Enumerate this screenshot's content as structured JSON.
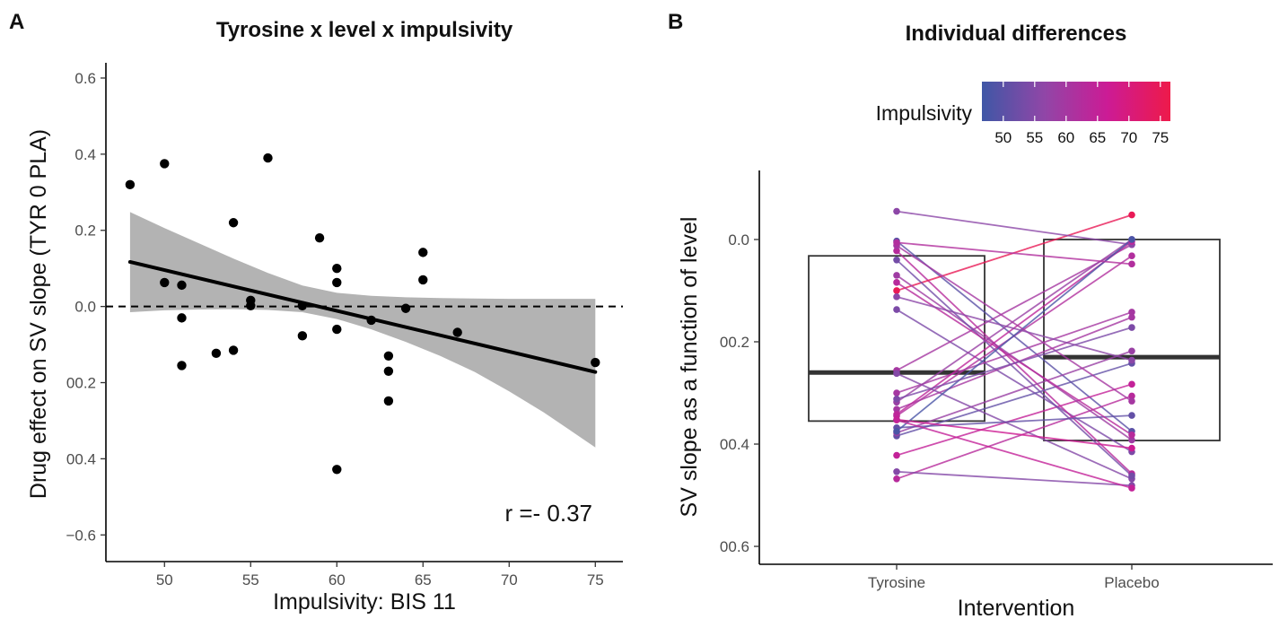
{
  "chart_data": [
    {
      "panel_label": "A",
      "type": "scatter",
      "title": "Tyrosine x level x impulsivity",
      "xlabel": "Impulsivity: BIS 11",
      "ylabel": "Drug effect on SV slope (TYR 0 PLA)",
      "xlim": [
        46.6,
        76.6
      ],
      "ylim": [
        -0.67,
        0.64
      ],
      "x_ticks": [
        {
          "value": 50,
          "label": "50"
        },
        {
          "value": 55,
          "label": "55"
        },
        {
          "value": 60,
          "label": "60"
        },
        {
          "value": 65,
          "label": "65"
        },
        {
          "value": 70,
          "label": "70"
        },
        {
          "value": 75,
          "label": "75"
        }
      ],
      "y_ticks": [
        {
          "value": 0.6,
          "label": "0.6"
        },
        {
          "value": 0.4,
          "label": "0.4"
        },
        {
          "value": 0.2,
          "label": "0.2"
        },
        {
          "value": 0.0,
          "label": "0.0"
        },
        {
          "value": -0.2,
          "label": "00.2"
        },
        {
          "value": -0.4,
          "label": "00.4"
        },
        {
          "value": -0.6,
          "label": "−0.6"
        }
      ],
      "points": [
        {
          "x": 48,
          "y": 0.32
        },
        {
          "x": 50,
          "y": 0.375
        },
        {
          "x": 50,
          "y": 0.063
        },
        {
          "x": 51,
          "y": 0.056
        },
        {
          "x": 51,
          "y": -0.03
        },
        {
          "x": 51,
          "y": -0.155
        },
        {
          "x": 53,
          "y": -0.123
        },
        {
          "x": 54,
          "y": 0.22
        },
        {
          "x": 54,
          "y": -0.115
        },
        {
          "x": 55,
          "y": 0.016
        },
        {
          "x": 55,
          "y": 0.002
        },
        {
          "x": 56,
          "y": 0.39
        },
        {
          "x": 58,
          "y": 0.002
        },
        {
          "x": 58,
          "y": -0.077
        },
        {
          "x": 59,
          "y": 0.18
        },
        {
          "x": 60,
          "y": 0.1
        },
        {
          "x": 60,
          "y": 0.063
        },
        {
          "x": 60,
          "y": -0.06
        },
        {
          "x": 60,
          "y": -0.428
        },
        {
          "x": 62,
          "y": -0.036
        },
        {
          "x": 63,
          "y": -0.13
        },
        {
          "x": 63,
          "y": -0.17
        },
        {
          "x": 63,
          "y": -0.248
        },
        {
          "x": 64,
          "y": -0.005
        },
        {
          "x": 65,
          "y": 0.142
        },
        {
          "x": 65,
          "y": 0.07
        },
        {
          "x": 67,
          "y": -0.068
        },
        {
          "x": 75,
          "y": -0.147
        }
      ],
      "fit": {
        "x": [
          48,
          75
        ],
        "y": [
          0.117,
          -0.172
        ]
      },
      "confidence_band": {
        "x": [
          48,
          50,
          52,
          54,
          56,
          58,
          60,
          62,
          64,
          66,
          68,
          70,
          72,
          75
        ],
        "upper": [
          0.248,
          0.206,
          0.166,
          0.126,
          0.088,
          0.055,
          0.036,
          0.028,
          0.024,
          0.022,
          0.021,
          0.02,
          0.02,
          0.02
        ],
        "lower": [
          -0.015,
          -0.01,
          -0.008,
          -0.007,
          -0.009,
          -0.015,
          -0.033,
          -0.06,
          -0.093,
          -0.13,
          -0.172,
          -0.223,
          -0.278,
          -0.37
        ]
      },
      "reference_line": {
        "y": 0,
        "style": "dashed"
      },
      "annotation": "r =- 0.37",
      "grid": false
    },
    {
      "panel_label": "B",
      "type": "box",
      "title": "Individual differences",
      "xlabel": "Intervention",
      "ylabel": "SV slope as a function of level",
      "categories": [
        "Tyrosine",
        "Placebo"
      ],
      "y_ticks": [
        {
          "value": 0.0,
          "label": "0.0"
        },
        {
          "value": -0.2,
          "label": "00.2"
        },
        {
          "value": -0.4,
          "label": "00.4"
        },
        {
          "value": -0.6,
          "label": "00.6"
        }
      ],
      "ylim": [
        -0.635,
        0.135
      ],
      "boxes": [
        {
          "category": "Tyrosine",
          "q1": -0.355,
          "median": -0.26,
          "q3": -0.032
        },
        {
          "category": "Placebo",
          "q1": -0.393,
          "median": -0.23,
          "q3": 0.0
        }
      ],
      "legend": {
        "title": "Impulsivity",
        "placement": "top",
        "range": [
          46.6,
          76.6
        ],
        "ticks": [
          "50",
          "55",
          "60",
          "65",
          "70",
          "75"
        ],
        "colors": [
          "#3f57a6",
          "#9146a7",
          "#cc1b95",
          "#ee1a4a"
        ]
      },
      "pairs": [
        {
          "impulsivity": 50,
          "tyrosine": -0.003,
          "placebo": -0.375
        },
        {
          "impulsivity": 62,
          "tyrosine": -0.345,
          "placebo": -0.032
        },
        {
          "impulsivity": 54,
          "tyrosine": -0.137,
          "placebo": -0.415
        },
        {
          "impulsivity": 63,
          "tyrosine": -0.022,
          "placebo": -0.458
        },
        {
          "impulsivity": 60,
          "tyrosine": -0.256,
          "placebo": -0.01
        },
        {
          "impulsivity": 75,
          "tyrosine": -0.1,
          "placebo": 0.048
        },
        {
          "impulsivity": 56,
          "tyrosine": 0.055,
          "placebo": -0.01
        },
        {
          "impulsivity": 51,
          "tyrosine": -0.384,
          "placebo": -0.242
        },
        {
          "impulsivity": 58,
          "tyrosine": -0.378,
          "placebo": -0.218
        },
        {
          "impulsivity": 55,
          "tyrosine": -0.262,
          "placebo": -0.468
        },
        {
          "impulsivity": 65,
          "tyrosine": -0.422,
          "placebo": -0.283
        },
        {
          "impulsivity": 63,
          "tyrosine": -0.468,
          "placebo": -0.306
        },
        {
          "impulsivity": 60,
          "tyrosine": -0.3,
          "placebo": -0.142
        },
        {
          "impulsivity": 59,
          "tyrosine": -0.07,
          "placebo": -0.392
        },
        {
          "impulsivity": 51,
          "tyrosine": -0.368,
          "placebo": -0.344
        },
        {
          "impulsivity": 53,
          "tyrosine": -0.04,
          "placebo": -0.462
        },
        {
          "impulsivity": 60,
          "tyrosine": -0.332,
          "placebo": -0.152
        },
        {
          "impulsivity": 63,
          "tyrosine": -0.084,
          "placebo": -0.382
        },
        {
          "impulsivity": 58,
          "tyrosine": -0.318,
          "placebo": 0.0
        },
        {
          "impulsivity": 64,
          "tyrosine": -0.342,
          "placebo": -0.004
        },
        {
          "impulsivity": 48,
          "tyrosine": -0.375,
          "placebo": 0.0
        },
        {
          "impulsivity": 60,
          "tyrosine": -0.012,
          "placebo": -0.316
        },
        {
          "impulsivity": 55,
          "tyrosine": -0.454,
          "placebo": -0.481
        },
        {
          "impulsivity": 54,
          "tyrosine": -0.312,
          "placebo": -0.172
        },
        {
          "impulsivity": 62,
          "tyrosine": -0.006,
          "placebo": -0.048
        },
        {
          "impulsivity": 67,
          "tyrosine": -0.352,
          "placebo": -0.408
        },
        {
          "impulsivity": 56,
          "tyrosine": -0.112,
          "placebo": -0.236
        },
        {
          "impulsivity": 65,
          "tyrosine": -0.353,
          "placebo": -0.486
        }
      ],
      "grid": false
    }
  ]
}
